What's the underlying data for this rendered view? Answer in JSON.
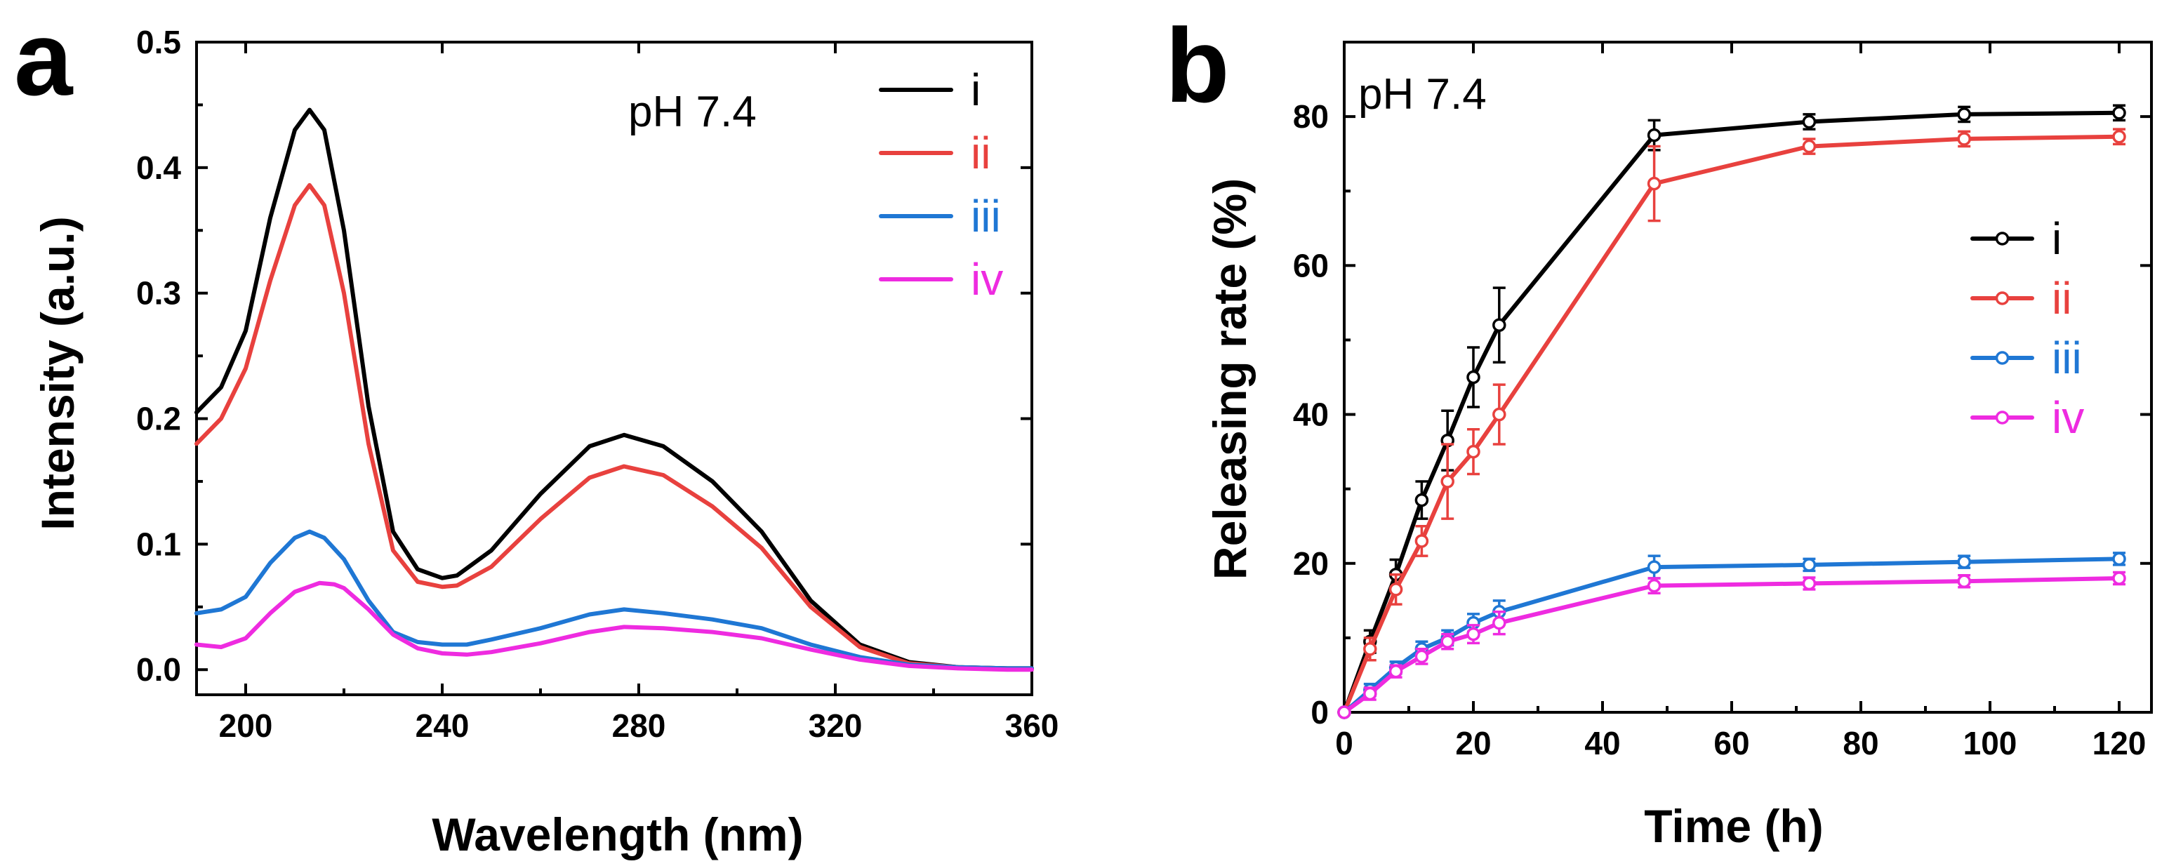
{
  "chart_data": [
    {
      "panel": "a",
      "type": "line",
      "annotation": "pH 7.4",
      "xlabel": "Wavelength (nm)",
      "ylabel": "Intensity (a.u.)",
      "xlim": [
        190,
        360
      ],
      "ylim": [
        -0.02,
        0.5
      ],
      "xticks": [
        200,
        240,
        280,
        320,
        360
      ],
      "xtick_labels": [
        "200",
        "240",
        "280",
        "320",
        "360"
      ],
      "yticks": [
        0.0,
        0.1,
        0.2,
        0.3,
        0.4,
        0.5
      ],
      "ytick_labels": [
        "0.0",
        "0.1",
        "0.2",
        "0.3",
        "0.4",
        "0.5"
      ],
      "legend_position": "top-right",
      "series": [
        {
          "name": "i",
          "color": "#000000",
          "x": [
            190,
            195,
            200,
            205,
            210,
            213,
            216,
            220,
            225,
            230,
            235,
            240,
            243,
            250,
            260,
            270,
            277,
            285,
            295,
            305,
            315,
            325,
            335,
            345,
            355,
            360
          ],
          "y": [
            0.205,
            0.225,
            0.27,
            0.36,
            0.43,
            0.446,
            0.43,
            0.35,
            0.21,
            0.11,
            0.08,
            0.073,
            0.075,
            0.095,
            0.14,
            0.178,
            0.187,
            0.178,
            0.15,
            0.11,
            0.055,
            0.02,
            0.006,
            0.002,
            0.001,
            0.001
          ]
        },
        {
          "name": "ii",
          "color": "#e8413e",
          "x": [
            190,
            195,
            200,
            205,
            210,
            213,
            216,
            220,
            225,
            230,
            235,
            240,
            243,
            250,
            260,
            270,
            277,
            285,
            295,
            305,
            315,
            325,
            335,
            345,
            355,
            360
          ],
          "y": [
            0.18,
            0.2,
            0.24,
            0.31,
            0.37,
            0.386,
            0.37,
            0.3,
            0.18,
            0.095,
            0.07,
            0.066,
            0.067,
            0.082,
            0.12,
            0.153,
            0.162,
            0.155,
            0.13,
            0.097,
            0.05,
            0.018,
            0.005,
            0.002,
            0.001,
            0.001
          ]
        },
        {
          "name": "iii",
          "color": "#1f77d4",
          "x": [
            190,
            195,
            200,
            205,
            210,
            213,
            216,
            220,
            225,
            230,
            235,
            240,
            245,
            250,
            260,
            270,
            277,
            285,
            295,
            305,
            315,
            325,
            335,
            345,
            355,
            360
          ],
          "y": [
            0.045,
            0.048,
            0.058,
            0.085,
            0.105,
            0.11,
            0.105,
            0.088,
            0.055,
            0.03,
            0.022,
            0.02,
            0.02,
            0.024,
            0.033,
            0.044,
            0.048,
            0.045,
            0.04,
            0.033,
            0.02,
            0.01,
            0.004,
            0.002,
            0.001,
            0.001
          ]
        },
        {
          "name": "iv",
          "color": "#ee2be0",
          "x": [
            190,
            195,
            200,
            205,
            210,
            215,
            218,
            220,
            225,
            230,
            235,
            240,
            245,
            250,
            260,
            270,
            277,
            285,
            295,
            305,
            315,
            325,
            335,
            345,
            355,
            360
          ],
          "y": [
            0.02,
            0.018,
            0.025,
            0.045,
            0.062,
            0.069,
            0.068,
            0.065,
            0.048,
            0.028,
            0.017,
            0.013,
            0.012,
            0.014,
            0.021,
            0.03,
            0.034,
            0.033,
            0.03,
            0.025,
            0.016,
            0.008,
            0.003,
            0.001,
            0.0,
            0.0
          ]
        }
      ]
    },
    {
      "panel": "b",
      "type": "line",
      "annotation": "pH 7.4",
      "xlabel": "Time (h)",
      "ylabel": "Releasing rate (%)",
      "xlim": [
        0,
        125
      ],
      "ylim": [
        0,
        90
      ],
      "xticks": [
        0,
        20,
        40,
        60,
        80,
        100,
        120
      ],
      "xtick_labels": [
        "0",
        "20",
        "40",
        "60",
        "80",
        "100",
        "120"
      ],
      "yticks": [
        0,
        20,
        40,
        60,
        80
      ],
      "ytick_labels": [
        "0",
        "20",
        "40",
        "60",
        "80"
      ],
      "legend_position": "middle-right",
      "series": [
        {
          "name": "i",
          "color": "#000000",
          "x": [
            0,
            4,
            8,
            12,
            16,
            20,
            24,
            48,
            72,
            96,
            120
          ],
          "y": [
            0,
            9.5,
            18.5,
            28.5,
            36.5,
            45,
            52,
            77.5,
            79.3,
            80.3,
            80.5
          ],
          "err": [
            0,
            1.5,
            2,
            2.5,
            4,
            4,
            5,
            2,
            1,
            1,
            1
          ]
        },
        {
          "name": "ii",
          "color": "#e8413e",
          "x": [
            0,
            4,
            8,
            12,
            16,
            20,
            24,
            48,
            72,
            96,
            120
          ],
          "y": [
            0,
            8.5,
            16.5,
            23,
            31,
            35,
            40,
            71,
            76,
            77,
            77.3
          ],
          "err": [
            0,
            1.5,
            2,
            2,
            5,
            3,
            4,
            5,
            1,
            1,
            1
          ]
        },
        {
          "name": "iii",
          "color": "#1f77d4",
          "x": [
            0,
            4,
            8,
            12,
            16,
            20,
            24,
            48,
            72,
            96,
            120
          ],
          "y": [
            0,
            3,
            6,
            8.5,
            10,
            12,
            13.5,
            19.5,
            19.8,
            20.2,
            20.6
          ],
          "err": [
            0,
            0.8,
            0.8,
            1,
            1,
            1.2,
            1.5,
            1.5,
            0.8,
            0.8,
            0.8
          ]
        },
        {
          "name": "iv",
          "color": "#ee2be0",
          "x": [
            0,
            4,
            8,
            12,
            16,
            20,
            24,
            48,
            72,
            96,
            120
          ],
          "y": [
            0,
            2.5,
            5.5,
            7.5,
            9.5,
            10.5,
            12,
            17,
            17.3,
            17.6,
            18
          ],
          "err": [
            0,
            0.8,
            0.8,
            1,
            1,
            1.2,
            1.5,
            1,
            0.8,
            0.8,
            0.8
          ]
        }
      ]
    }
  ]
}
